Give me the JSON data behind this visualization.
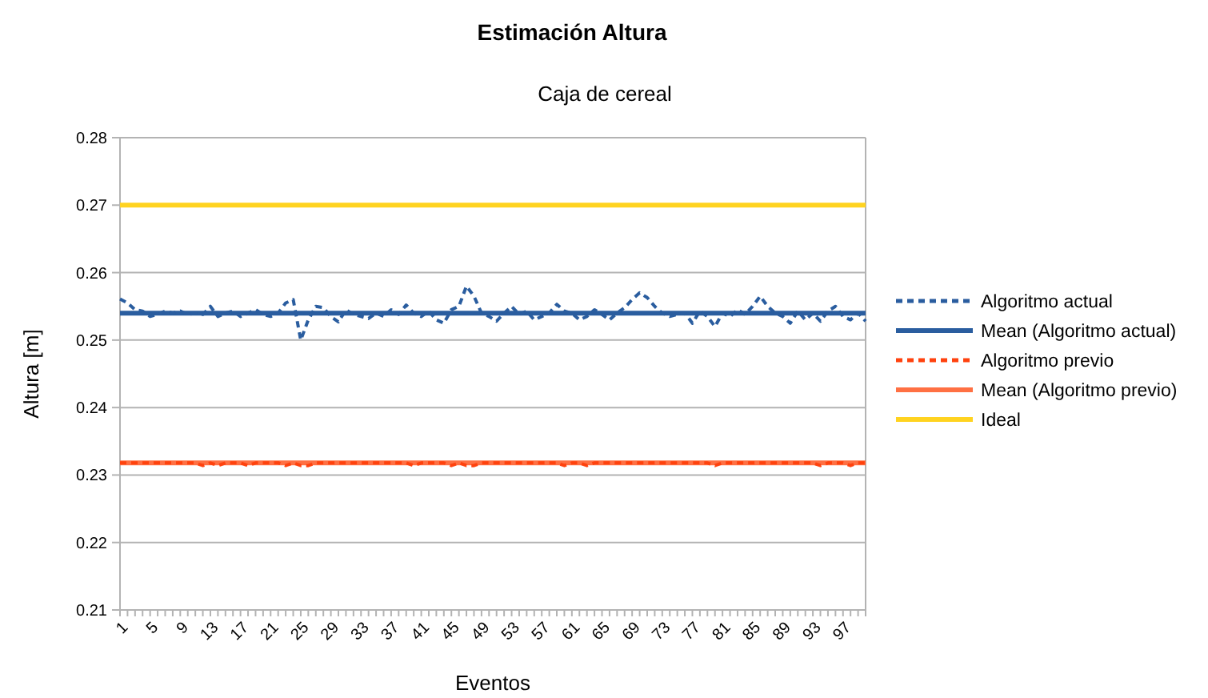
{
  "chart_data": {
    "type": "line",
    "title": "Estimación Altura",
    "subtitle": "Caja de cereal",
    "xlabel": "Eventos",
    "ylabel": "Altura [m]",
    "categories": [
      "1",
      null,
      null,
      null,
      "5",
      null,
      null,
      null,
      "9",
      null,
      null,
      null,
      "13",
      null,
      null,
      null,
      "17",
      null,
      null,
      null,
      "21",
      null,
      null,
      null,
      "25",
      null,
      null,
      null,
      "29",
      null,
      null,
      null,
      "33",
      null,
      null,
      null,
      "37",
      null,
      null,
      null,
      "41",
      null,
      null,
      null,
      "45",
      null,
      null,
      null,
      "49",
      null,
      null,
      null,
      "53",
      null,
      null,
      null,
      "57",
      null,
      null,
      null,
      "61",
      null,
      null,
      null,
      "65",
      null,
      null,
      null,
      "69",
      null,
      null,
      null,
      "73",
      null,
      null,
      null,
      "77",
      null,
      null,
      null,
      "81",
      null,
      null,
      null,
      "85",
      null,
      null,
      null,
      "89",
      null,
      null,
      null,
      "93",
      null,
      null,
      null,
      "97",
      null,
      null,
      null
    ],
    "ylim": [
      0.21,
      0.28
    ],
    "yticks": [
      0.21,
      0.22,
      0.23,
      0.24,
      0.25,
      0.26,
      0.27,
      0.28
    ],
    "grid": "y",
    "legend": "right",
    "marker": "none",
    "series": [
      {
        "name": "Algoritmo actual",
        "color": "#2a5d9f",
        "line_style": "dashed",
        "values": [
          0.2561,
          0.2555,
          0.2545,
          0.2543,
          0.2535,
          0.2538,
          0.2543,
          0.254,
          0.2543,
          0.2538,
          0.254,
          0.2538,
          0.255,
          0.2535,
          0.254,
          0.2543,
          0.2535,
          0.254,
          0.2545,
          0.2538,
          0.2535,
          0.254,
          0.2555,
          0.256,
          0.25,
          0.253,
          0.255,
          0.2548,
          0.2535,
          0.2527,
          0.2545,
          0.2538,
          0.2535,
          0.2532,
          0.254,
          0.2535,
          0.2545,
          0.2538,
          0.2552,
          0.254,
          0.2535,
          0.2543,
          0.253,
          0.2525,
          0.2545,
          0.255,
          0.258,
          0.2565,
          0.254,
          0.2535,
          0.2528,
          0.254,
          0.255,
          0.2538,
          0.2543,
          0.253,
          0.2535,
          0.254,
          0.2553,
          0.2543,
          0.254,
          0.253,
          0.2535,
          0.2545,
          0.2538,
          0.253,
          0.254,
          0.2548,
          0.256,
          0.257,
          0.2563,
          0.255,
          0.254,
          0.2535,
          0.2538,
          0.254,
          0.2525,
          0.2543,
          0.2535,
          0.252,
          0.254,
          0.2535,
          0.2545,
          0.2538,
          0.255,
          0.2565,
          0.255,
          0.254,
          0.2535,
          0.2525,
          0.2543,
          0.253,
          0.254,
          0.2528,
          0.2543,
          0.255,
          0.2535,
          0.253,
          0.254,
          0.2528
        ]
      },
      {
        "name": "Mean (Algoritmo actual)",
        "color": "#2a5d9f",
        "line_style": "solid",
        "values": [
          0.254,
          0.254,
          0.254,
          0.254,
          0.254,
          0.254,
          0.254,
          0.254,
          0.254,
          0.254,
          0.254,
          0.254,
          0.254,
          0.254,
          0.254,
          0.254,
          0.254,
          0.254,
          0.254,
          0.254,
          0.254,
          0.254,
          0.254,
          0.254,
          0.254,
          0.254,
          0.254,
          0.254,
          0.254,
          0.254,
          0.254,
          0.254,
          0.254,
          0.254,
          0.254,
          0.254,
          0.254,
          0.254,
          0.254,
          0.254,
          0.254,
          0.254,
          0.254,
          0.254,
          0.254,
          0.254,
          0.254,
          0.254,
          0.254,
          0.254,
          0.254,
          0.254,
          0.254,
          0.254,
          0.254,
          0.254,
          0.254,
          0.254,
          0.254,
          0.254,
          0.254,
          0.254,
          0.254,
          0.254,
          0.254,
          0.254,
          0.254,
          0.254,
          0.254,
          0.254,
          0.254,
          0.254,
          0.254,
          0.254,
          0.254,
          0.254,
          0.254,
          0.254,
          0.254,
          0.254,
          0.254,
          0.254,
          0.254,
          0.254,
          0.254,
          0.254,
          0.254,
          0.254,
          0.254,
          0.254,
          0.254,
          0.254,
          0.254,
          0.254,
          0.254,
          0.254,
          0.254,
          0.254,
          0.254,
          0.254
        ]
      },
      {
        "name": "Algoritmo previo",
        "color": "#ff420e",
        "line_style": "dashed",
        "values": [
          0.2318,
          0.2318,
          0.2318,
          0.2318,
          0.2318,
          0.2318,
          0.2318,
          0.2318,
          0.2318,
          0.2318,
          0.2318,
          0.2314,
          0.2318,
          0.2314,
          0.2318,
          0.2318,
          0.2318,
          0.2314,
          0.2318,
          0.2318,
          0.2318,
          0.2318,
          0.2314,
          0.2318,
          0.2314,
          0.2314,
          0.2318,
          0.2318,
          0.2318,
          0.2318,
          0.2318,
          0.2318,
          0.2318,
          0.2318,
          0.2318,
          0.2318,
          0.2318,
          0.2318,
          0.2318,
          0.2314,
          0.2318,
          0.2318,
          0.2318,
          0.2318,
          0.2314,
          0.2318,
          0.2314,
          0.2314,
          0.2318,
          0.2318,
          0.2318,
          0.2318,
          0.2318,
          0.2318,
          0.2318,
          0.2318,
          0.2318,
          0.2318,
          0.2318,
          0.2314,
          0.2318,
          0.2318,
          0.2314,
          0.2318,
          0.2318,
          0.2318,
          0.2318,
          0.2318,
          0.2318,
          0.2318,
          0.2318,
          0.2318,
          0.2318,
          0.2318,
          0.2318,
          0.2318,
          0.2318,
          0.2318,
          0.2318,
          0.2314,
          0.2318,
          0.2318,
          0.2318,
          0.2318,
          0.2318,
          0.2318,
          0.2318,
          0.2318,
          0.2318,
          0.2318,
          0.2318,
          0.2318,
          0.2318,
          0.2314,
          0.2318,
          0.2318,
          0.2318,
          0.2314,
          0.2318,
          0.2318
        ]
      },
      {
        "name": "Mean (Algoritmo previo)",
        "color": "#ff7043",
        "line_style": "solid",
        "values": [
          0.2318,
          0.2318,
          0.2318,
          0.2318,
          0.2318,
          0.2318,
          0.2318,
          0.2318,
          0.2318,
          0.2318,
          0.2318,
          0.2318,
          0.2318,
          0.2318,
          0.2318,
          0.2318,
          0.2318,
          0.2318,
          0.2318,
          0.2318,
          0.2318,
          0.2318,
          0.2318,
          0.2318,
          0.2318,
          0.2318,
          0.2318,
          0.2318,
          0.2318,
          0.2318,
          0.2318,
          0.2318,
          0.2318,
          0.2318,
          0.2318,
          0.2318,
          0.2318,
          0.2318,
          0.2318,
          0.2318,
          0.2318,
          0.2318,
          0.2318,
          0.2318,
          0.2318,
          0.2318,
          0.2318,
          0.2318,
          0.2318,
          0.2318,
          0.2318,
          0.2318,
          0.2318,
          0.2318,
          0.2318,
          0.2318,
          0.2318,
          0.2318,
          0.2318,
          0.2318,
          0.2318,
          0.2318,
          0.2318,
          0.2318,
          0.2318,
          0.2318,
          0.2318,
          0.2318,
          0.2318,
          0.2318,
          0.2318,
          0.2318,
          0.2318,
          0.2318,
          0.2318,
          0.2318,
          0.2318,
          0.2318,
          0.2318,
          0.2318,
          0.2318,
          0.2318,
          0.2318,
          0.2318,
          0.2318,
          0.2318,
          0.2318,
          0.2318,
          0.2318,
          0.2318,
          0.2318,
          0.2318,
          0.2318,
          0.2318,
          0.2318,
          0.2318,
          0.2318,
          0.2318,
          0.2318,
          0.2318
        ]
      },
      {
        "name": "Ideal",
        "color": "#ffd320",
        "line_style": "solid",
        "values": [
          0.27,
          0.27,
          0.27,
          0.27,
          0.27,
          0.27,
          0.27,
          0.27,
          0.27,
          0.27,
          0.27,
          0.27,
          0.27,
          0.27,
          0.27,
          0.27,
          0.27,
          0.27,
          0.27,
          0.27,
          0.27,
          0.27,
          0.27,
          0.27,
          0.27,
          0.27,
          0.27,
          0.27,
          0.27,
          0.27,
          0.27,
          0.27,
          0.27,
          0.27,
          0.27,
          0.27,
          0.27,
          0.27,
          0.27,
          0.27,
          0.27,
          0.27,
          0.27,
          0.27,
          0.27,
          0.27,
          0.27,
          0.27,
          0.27,
          0.27,
          0.27,
          0.27,
          0.27,
          0.27,
          0.27,
          0.27,
          0.27,
          0.27,
          0.27,
          0.27,
          0.27,
          0.27,
          0.27,
          0.27,
          0.27,
          0.27,
          0.27,
          0.27,
          0.27,
          0.27,
          0.27,
          0.27,
          0.27,
          0.27,
          0.27,
          0.27,
          0.27,
          0.27,
          0.27,
          0.27,
          0.27,
          0.27,
          0.27,
          0.27,
          0.27,
          0.27,
          0.27,
          0.27,
          0.27,
          0.27,
          0.27,
          0.27,
          0.27,
          0.27,
          0.27,
          0.27,
          0.27,
          0.27,
          0.27,
          0.27
        ]
      }
    ]
  }
}
